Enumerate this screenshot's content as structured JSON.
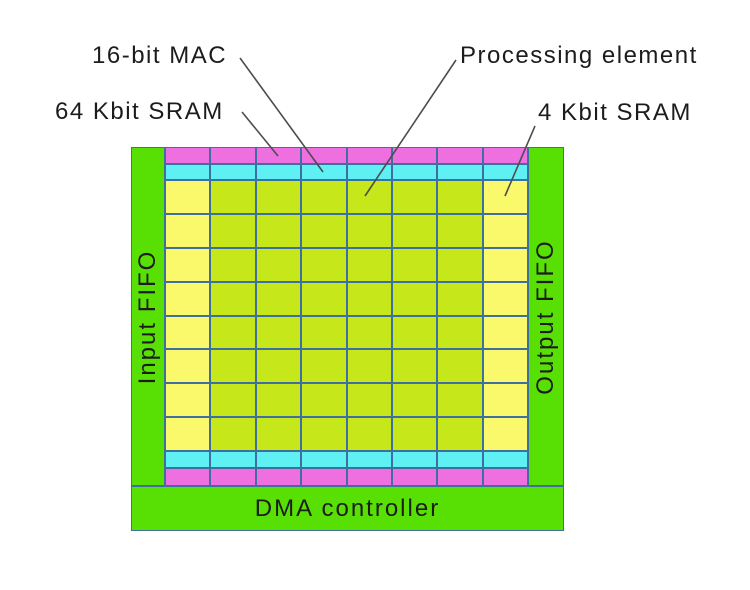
{
  "figure": {
    "annotations": {
      "mac": {
        "label": "16-bit MAC",
        "points_to": "mac-row"
      },
      "processing_element": {
        "label": "Processing element",
        "points_to": "pe-cell"
      },
      "sram64": {
        "label": "64 Kbit SRAM",
        "points_to": "sram64-row"
      },
      "sram4": {
        "label": "4 Kbit SRAM",
        "points_to": "sram4-edge-column"
      }
    },
    "blocks": {
      "input_fifo": "Input FIFO",
      "output_fifo": "Output FIFO",
      "dma": "DMA controller"
    },
    "array": {
      "columns": 8,
      "pe_rows": 8,
      "row_types_top_to_bottom": [
        "sram64",
        "mac",
        "pe",
        "pe",
        "pe",
        "pe",
        "pe",
        "pe",
        "pe",
        "pe",
        "mac",
        "sram64"
      ],
      "edge_column_type": "sram4"
    },
    "colors": {
      "sram64_row": "#ee6fe0",
      "mac_row": "#5ff0f4",
      "pe_cell": "#c6e81a",
      "sram4_cell": "#f9f96b",
      "fifo_green": "#58e005",
      "grid_line": "#3f6fa0",
      "leader_line": "#4d4d4d",
      "text": "#1c1c1c",
      "background": "#ffffff"
    }
  }
}
